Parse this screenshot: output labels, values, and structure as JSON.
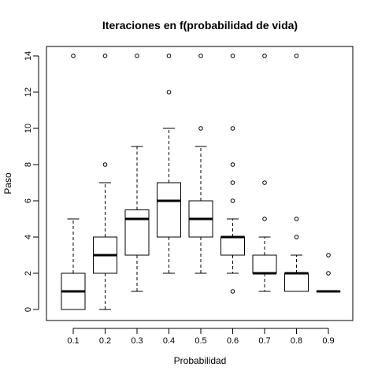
{
  "chart_data": {
    "type": "boxplot",
    "title": "Iteraciones en f(probabilidad de vida)",
    "xlabel": "Probabilidad",
    "ylabel": "Paso",
    "ylim": [
      -0.5,
      14.5
    ],
    "yticks": [
      0,
      2,
      4,
      6,
      8,
      10,
      12,
      14
    ],
    "ytick_labels": [
      "0",
      "2",
      "4",
      "6",
      "8",
      "10",
      "12",
      "14"
    ],
    "categories": [
      "0.1",
      "0.2",
      "0.3",
      "0.4",
      "0.5",
      "0.6",
      "0.7",
      "0.8",
      "0.9"
    ],
    "boxes": [
      {
        "category": "0.1",
        "whisker_low": 0,
        "q1": 0,
        "median": 1,
        "q3": 2,
        "whisker_high": 5,
        "outliers": [
          14
        ]
      },
      {
        "category": "0.2",
        "whisker_low": 0,
        "q1": 2,
        "median": 3,
        "q3": 4,
        "whisker_high": 7,
        "outliers": [
          8,
          14
        ]
      },
      {
        "category": "0.3",
        "whisker_low": 1,
        "q1": 3,
        "median": 5,
        "q3": 5.5,
        "whisker_high": 9,
        "outliers": [
          14
        ]
      },
      {
        "category": "0.4",
        "whisker_low": 2,
        "q1": 4,
        "median": 6,
        "q3": 7,
        "whisker_high": 10,
        "outliers": [
          12,
          14
        ]
      },
      {
        "category": "0.5",
        "whisker_low": 2,
        "q1": 4,
        "median": 5,
        "q3": 6,
        "whisker_high": 9,
        "outliers": [
          10,
          14
        ]
      },
      {
        "category": "0.6",
        "whisker_low": 2,
        "q1": 3,
        "median": 4,
        "q3": 4,
        "whisker_high": 5,
        "outliers": [
          1,
          6,
          7,
          8,
          10,
          14
        ]
      },
      {
        "category": "0.7",
        "whisker_low": 1,
        "q1": 2,
        "median": 2,
        "q3": 3,
        "whisker_high": 4,
        "outliers": [
          5,
          7,
          14
        ]
      },
      {
        "category": "0.8",
        "whisker_low": 1,
        "q1": 1,
        "median": 2,
        "q3": 2,
        "whisker_high": 3,
        "outliers": [
          4,
          5,
          14
        ]
      },
      {
        "category": "0.9",
        "whisker_low": 1,
        "q1": 1,
        "median": 1,
        "q3": 1,
        "whisker_high": 1,
        "outliers": [
          2,
          3
        ]
      }
    ],
    "grid": false,
    "legend": "none"
  }
}
